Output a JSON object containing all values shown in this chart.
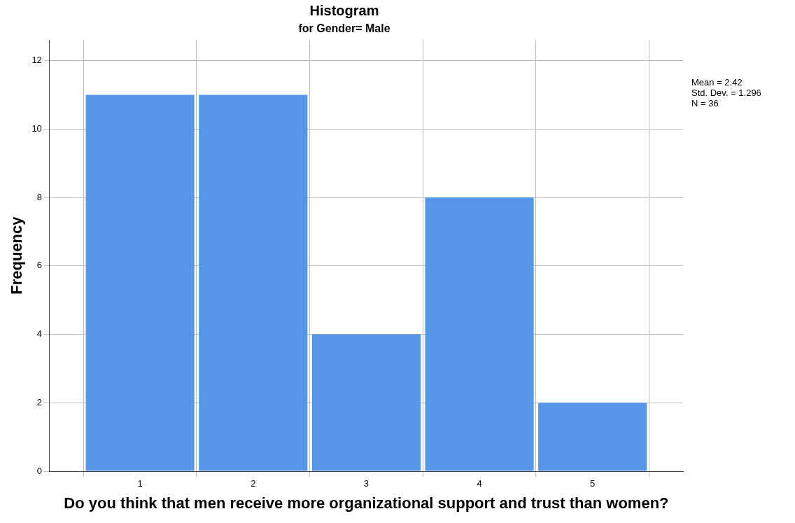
{
  "chart_data": {
    "type": "histogram",
    "title": "Histogram",
    "subtitle": "for Gender= Male",
    "xlabel": "Do you think that men receive more organizational support and trust than women?",
    "ylabel": "Frequency",
    "bins": [
      0.5,
      1.5,
      2.5,
      3.5,
      4.5,
      5.5
    ],
    "values": [
      11,
      11,
      4,
      8,
      2
    ],
    "color": "#5596e6",
    "xlim": [
      0.2,
      5.8
    ],
    "xticks": [
      1,
      2,
      3,
      4,
      5
    ],
    "ylim": [
      0,
      12.6
    ],
    "yticks": [
      0,
      2,
      4,
      6,
      8,
      10,
      12
    ],
    "grid": true,
    "annotations": [
      "Mean = 2.42",
      "Std. Dev. = 1.296",
      "N = 36"
    ]
  }
}
